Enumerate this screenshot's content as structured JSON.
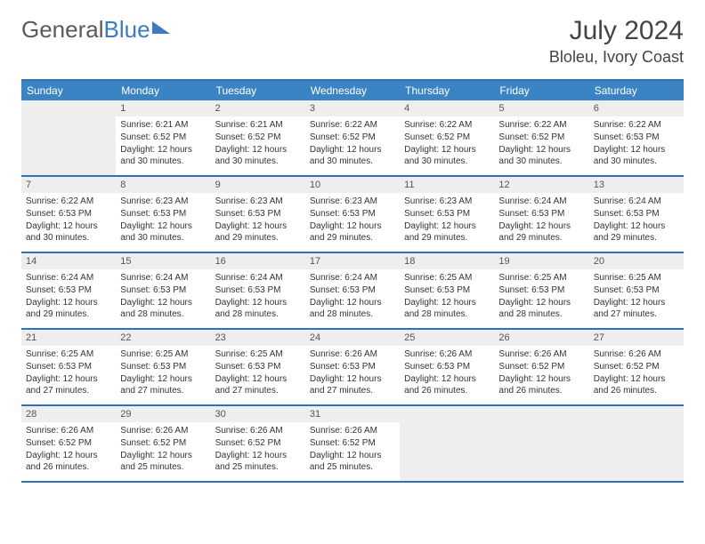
{
  "logo": {
    "text1": "General",
    "text2": "Blue"
  },
  "header": {
    "title": "July 2024",
    "location": "Bloleu, Ivory Coast"
  },
  "theme": {
    "header_bg": "#3b84c4",
    "rule": "#2d72b8",
    "daynum_bg": "#eeeeee"
  },
  "dow": [
    "Sunday",
    "Monday",
    "Tuesday",
    "Wednesday",
    "Thursday",
    "Friday",
    "Saturday"
  ],
  "weeks": [
    [
      {
        "n": "",
        "sr": "",
        "ss": "",
        "dl": ""
      },
      {
        "n": "1",
        "sr": "Sunrise: 6:21 AM",
        "ss": "Sunset: 6:52 PM",
        "dl": "Daylight: 12 hours and 30 minutes."
      },
      {
        "n": "2",
        "sr": "Sunrise: 6:21 AM",
        "ss": "Sunset: 6:52 PM",
        "dl": "Daylight: 12 hours and 30 minutes."
      },
      {
        "n": "3",
        "sr": "Sunrise: 6:22 AM",
        "ss": "Sunset: 6:52 PM",
        "dl": "Daylight: 12 hours and 30 minutes."
      },
      {
        "n": "4",
        "sr": "Sunrise: 6:22 AM",
        "ss": "Sunset: 6:52 PM",
        "dl": "Daylight: 12 hours and 30 minutes."
      },
      {
        "n": "5",
        "sr": "Sunrise: 6:22 AM",
        "ss": "Sunset: 6:52 PM",
        "dl": "Daylight: 12 hours and 30 minutes."
      },
      {
        "n": "6",
        "sr": "Sunrise: 6:22 AM",
        "ss": "Sunset: 6:53 PM",
        "dl": "Daylight: 12 hours and 30 minutes."
      }
    ],
    [
      {
        "n": "7",
        "sr": "Sunrise: 6:22 AM",
        "ss": "Sunset: 6:53 PM",
        "dl": "Daylight: 12 hours and 30 minutes."
      },
      {
        "n": "8",
        "sr": "Sunrise: 6:23 AM",
        "ss": "Sunset: 6:53 PM",
        "dl": "Daylight: 12 hours and 30 minutes."
      },
      {
        "n": "9",
        "sr": "Sunrise: 6:23 AM",
        "ss": "Sunset: 6:53 PM",
        "dl": "Daylight: 12 hours and 29 minutes."
      },
      {
        "n": "10",
        "sr": "Sunrise: 6:23 AM",
        "ss": "Sunset: 6:53 PM",
        "dl": "Daylight: 12 hours and 29 minutes."
      },
      {
        "n": "11",
        "sr": "Sunrise: 6:23 AM",
        "ss": "Sunset: 6:53 PM",
        "dl": "Daylight: 12 hours and 29 minutes."
      },
      {
        "n": "12",
        "sr": "Sunrise: 6:24 AM",
        "ss": "Sunset: 6:53 PM",
        "dl": "Daylight: 12 hours and 29 minutes."
      },
      {
        "n": "13",
        "sr": "Sunrise: 6:24 AM",
        "ss": "Sunset: 6:53 PM",
        "dl": "Daylight: 12 hours and 29 minutes."
      }
    ],
    [
      {
        "n": "14",
        "sr": "Sunrise: 6:24 AM",
        "ss": "Sunset: 6:53 PM",
        "dl": "Daylight: 12 hours and 29 minutes."
      },
      {
        "n": "15",
        "sr": "Sunrise: 6:24 AM",
        "ss": "Sunset: 6:53 PM",
        "dl": "Daylight: 12 hours and 28 minutes."
      },
      {
        "n": "16",
        "sr": "Sunrise: 6:24 AM",
        "ss": "Sunset: 6:53 PM",
        "dl": "Daylight: 12 hours and 28 minutes."
      },
      {
        "n": "17",
        "sr": "Sunrise: 6:24 AM",
        "ss": "Sunset: 6:53 PM",
        "dl": "Daylight: 12 hours and 28 minutes."
      },
      {
        "n": "18",
        "sr": "Sunrise: 6:25 AM",
        "ss": "Sunset: 6:53 PM",
        "dl": "Daylight: 12 hours and 28 minutes."
      },
      {
        "n": "19",
        "sr": "Sunrise: 6:25 AM",
        "ss": "Sunset: 6:53 PM",
        "dl": "Daylight: 12 hours and 28 minutes."
      },
      {
        "n": "20",
        "sr": "Sunrise: 6:25 AM",
        "ss": "Sunset: 6:53 PM",
        "dl": "Daylight: 12 hours and 27 minutes."
      }
    ],
    [
      {
        "n": "21",
        "sr": "Sunrise: 6:25 AM",
        "ss": "Sunset: 6:53 PM",
        "dl": "Daylight: 12 hours and 27 minutes."
      },
      {
        "n": "22",
        "sr": "Sunrise: 6:25 AM",
        "ss": "Sunset: 6:53 PM",
        "dl": "Daylight: 12 hours and 27 minutes."
      },
      {
        "n": "23",
        "sr": "Sunrise: 6:25 AM",
        "ss": "Sunset: 6:53 PM",
        "dl": "Daylight: 12 hours and 27 minutes."
      },
      {
        "n": "24",
        "sr": "Sunrise: 6:26 AM",
        "ss": "Sunset: 6:53 PM",
        "dl": "Daylight: 12 hours and 27 minutes."
      },
      {
        "n": "25",
        "sr": "Sunrise: 6:26 AM",
        "ss": "Sunset: 6:53 PM",
        "dl": "Daylight: 12 hours and 26 minutes."
      },
      {
        "n": "26",
        "sr": "Sunrise: 6:26 AM",
        "ss": "Sunset: 6:52 PM",
        "dl": "Daylight: 12 hours and 26 minutes."
      },
      {
        "n": "27",
        "sr": "Sunrise: 6:26 AM",
        "ss": "Sunset: 6:52 PM",
        "dl": "Daylight: 12 hours and 26 minutes."
      }
    ],
    [
      {
        "n": "28",
        "sr": "Sunrise: 6:26 AM",
        "ss": "Sunset: 6:52 PM",
        "dl": "Daylight: 12 hours and 26 minutes."
      },
      {
        "n": "29",
        "sr": "Sunrise: 6:26 AM",
        "ss": "Sunset: 6:52 PM",
        "dl": "Daylight: 12 hours and 25 minutes."
      },
      {
        "n": "30",
        "sr": "Sunrise: 6:26 AM",
        "ss": "Sunset: 6:52 PM",
        "dl": "Daylight: 12 hours and 25 minutes."
      },
      {
        "n": "31",
        "sr": "Sunrise: 6:26 AM",
        "ss": "Sunset: 6:52 PM",
        "dl": "Daylight: 12 hours and 25 minutes."
      },
      {
        "n": "",
        "sr": "",
        "ss": "",
        "dl": ""
      },
      {
        "n": "",
        "sr": "",
        "ss": "",
        "dl": ""
      },
      {
        "n": "",
        "sr": "",
        "ss": "",
        "dl": ""
      }
    ]
  ]
}
